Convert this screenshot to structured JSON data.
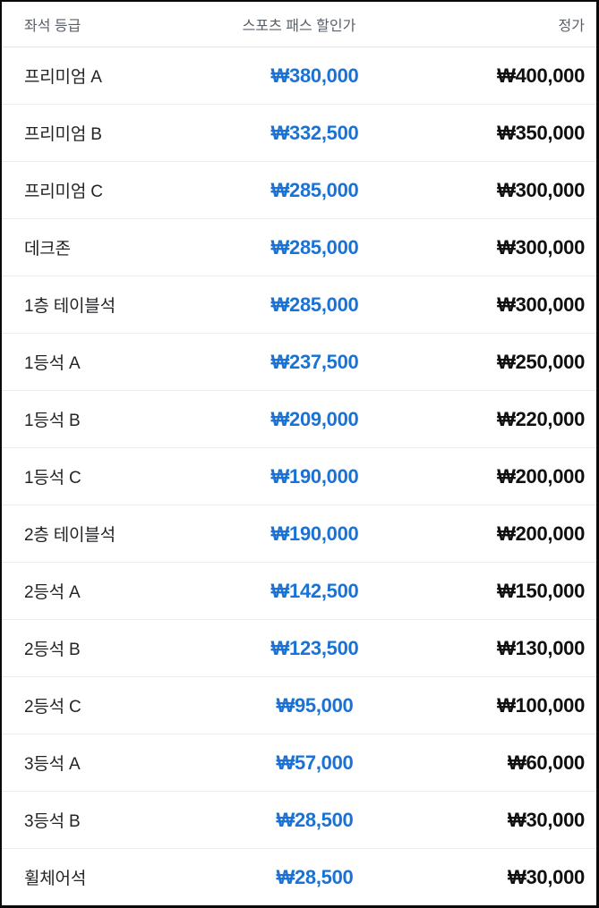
{
  "table": {
    "columns": {
      "seat": "좌석 등급",
      "discount": "스포츠 패스 할인가",
      "regular": "정가"
    },
    "rows": [
      {
        "seat": "프리미엄 A",
        "discount": "₩380,000",
        "regular": "₩400,000"
      },
      {
        "seat": "프리미엄 B",
        "discount": "₩332,500",
        "regular": "₩350,000"
      },
      {
        "seat": "프리미엄 C",
        "discount": "₩285,000",
        "regular": "₩300,000"
      },
      {
        "seat": "데크존",
        "discount": "₩285,000",
        "regular": "₩300,000"
      },
      {
        "seat": "1층 테이블석",
        "discount": "₩285,000",
        "regular": "₩300,000"
      },
      {
        "seat": "1등석 A",
        "discount": "₩237,500",
        "regular": "₩250,000"
      },
      {
        "seat": "1등석 B",
        "discount": "₩209,000",
        "regular": "₩220,000"
      },
      {
        "seat": "1등석 C",
        "discount": "₩190,000",
        "regular": "₩200,000"
      },
      {
        "seat": "2층 테이블석",
        "discount": "₩190,000",
        "regular": "₩200,000"
      },
      {
        "seat": "2등석 A",
        "discount": "₩142,500",
        "regular": "₩150,000"
      },
      {
        "seat": "2등석 B",
        "discount": "₩123,500",
        "regular": "₩130,000"
      },
      {
        "seat": "2등석 C",
        "discount": "₩95,000",
        "regular": "₩100,000"
      },
      {
        "seat": "3등석 A",
        "discount": "₩57,000",
        "regular": "₩60,000"
      },
      {
        "seat": "3등석 B",
        "discount": "₩28,500",
        "regular": "₩30,000"
      },
      {
        "seat": "휠체어석",
        "discount": "₩28,500",
        "regular": "₩30,000"
      }
    ]
  },
  "colors": {
    "discount_price_blue": "#1a72d6",
    "regular_price_black": "#0e1012",
    "header_gray": "#596069"
  }
}
